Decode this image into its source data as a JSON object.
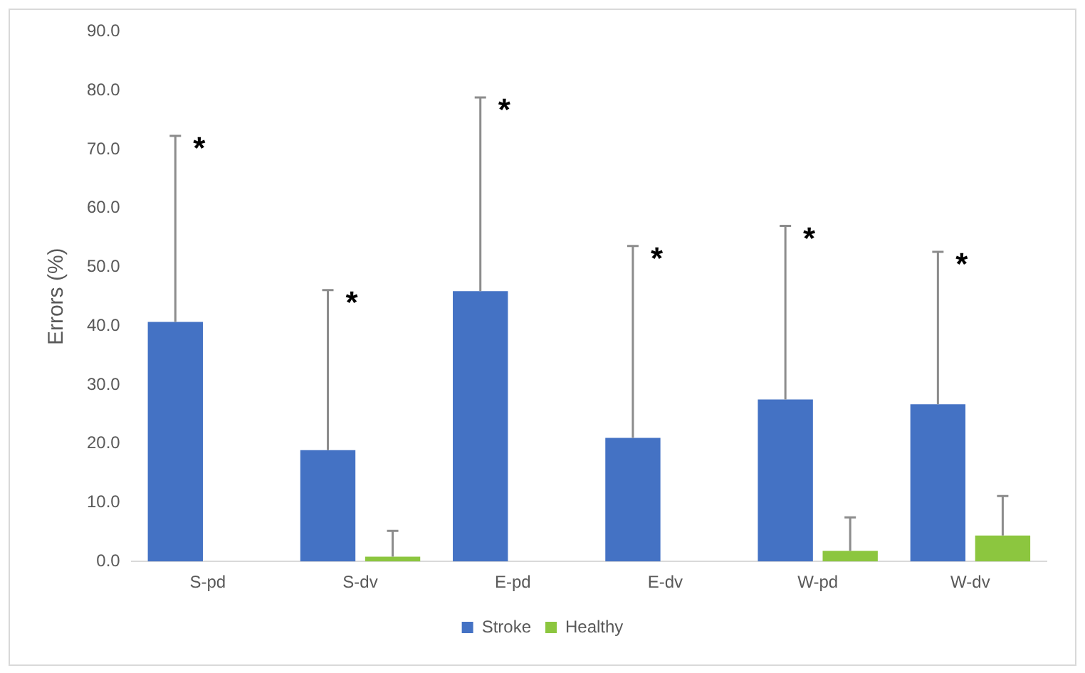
{
  "chart_data": {
    "type": "bar",
    "ylabel": "Errors (%)",
    "categories": [
      "S-pd",
      "S-dv",
      "E-pd",
      "E-dv",
      "W-pd",
      "W-dv"
    ],
    "series": [
      {
        "name": "Stroke",
        "color": "#4472c4",
        "values": [
          40.7,
          18.9,
          45.9,
          21.0,
          27.5,
          26.7
        ],
        "errors": [
          [
            40.7,
            72.3
          ],
          [
            18.9,
            46.1
          ],
          [
            45.9,
            78.8
          ],
          [
            21.0,
            53.6
          ],
          [
            27.5,
            57.0
          ],
          [
            26.7,
            52.6
          ]
        ]
      },
      {
        "name": "Healthy",
        "color": "#8cc63f",
        "values": [
          0,
          0.8,
          0,
          0,
          1.8,
          4.4
        ],
        "errors": [
          null,
          [
            0.8,
            5.2
          ],
          null,
          null,
          [
            1.8,
            7.5
          ],
          [
            4.4,
            11.1
          ]
        ]
      }
    ],
    "ylim": [
      0,
      90
    ],
    "yticks": [
      {
        "value": 0,
        "label": "0.0"
      },
      {
        "value": 10,
        "label": "10.0"
      },
      {
        "value": 20,
        "label": "20.0"
      },
      {
        "value": 30,
        "label": "30.0"
      },
      {
        "value": 40,
        "label": "40.0"
      },
      {
        "value": 50,
        "label": "50.0"
      },
      {
        "value": 60,
        "label": "60.0"
      },
      {
        "value": 70,
        "label": "70.0"
      },
      {
        "value": 80,
        "label": "80.0"
      },
      {
        "value": 90,
        "label": "90.0"
      }
    ],
    "annotations": [
      "*",
      "*",
      "*",
      "*",
      "*",
      "*"
    ],
    "grid": false,
    "legend": "bottom"
  }
}
